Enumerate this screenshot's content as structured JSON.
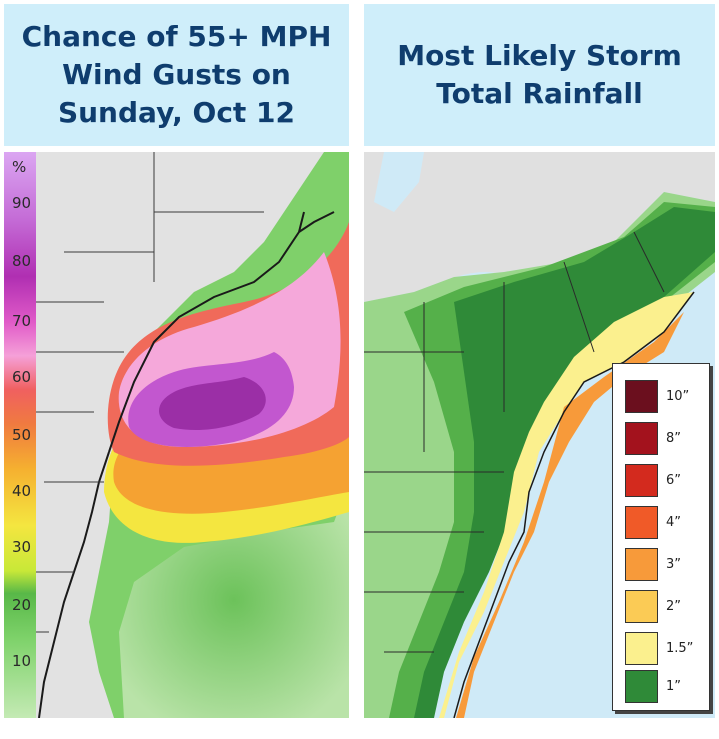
{
  "left_panel": {
    "title": "Chance of 55+ MPH\nWind Gusts on\nSunday, Oct 12",
    "scale_unit": "%",
    "scale_ticks": [
      "90",
      "80",
      "70",
      "60",
      "50",
      "40",
      "30",
      "20",
      "10"
    ]
  },
  "right_panel": {
    "title": "Most Likely Storm\nTotal Rainfall",
    "legend": [
      {
        "label": "10”",
        "color": "#6b0f1e"
      },
      {
        "label": "8”",
        "color": "#a3121d"
      },
      {
        "label": "6”",
        "color": "#d32a1e"
      },
      {
        "label": "4”",
        "color": "#f05a28"
      },
      {
        "label": "3”",
        "color": "#f79a3a"
      },
      {
        "label": "2”",
        "color": "#fbcb55"
      },
      {
        "label": "1.5”",
        "color": "#fbf08e"
      },
      {
        "label": "1”",
        "color": "#2f8a38"
      }
    ]
  },
  "colors": {
    "title_bg": "#cfeefa",
    "title_text": "#0f3d6e",
    "ocean": "#cfeaf7",
    "land_gray": "#e0e0e0"
  }
}
